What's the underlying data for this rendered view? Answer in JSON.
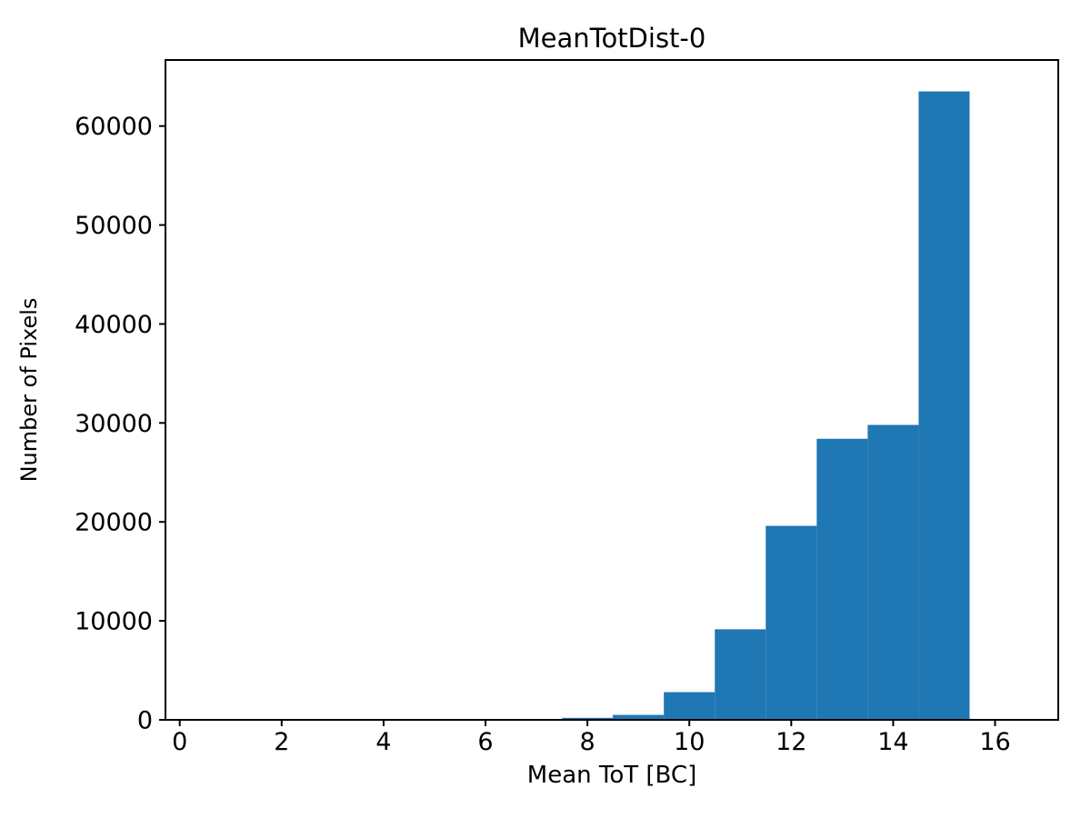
{
  "figure": {
    "background": "#ffffff"
  },
  "chart_data": {
    "type": "bar",
    "chart_kind": "histogram",
    "title": "MeanTotDist-0",
    "xlabel": "Mean ToT [BC]",
    "ylabel": "Number of Pixels",
    "bar_color": "#1f77b4",
    "axis_color": "#000000",
    "bin_edges": [
      7.5,
      8.5,
      9.5,
      10.5,
      11.5,
      12.5,
      13.5,
      14.5,
      15.5
    ],
    "counts": [
      200,
      500,
      2800,
      9150,
      19600,
      28400,
      29800,
      63500
    ],
    "xlim": [
      -0.28,
      17.24
    ],
    "ylim": [
      0,
      66675
    ],
    "xticks": [
      0,
      2,
      4,
      6,
      8,
      10,
      12,
      14,
      16
    ],
    "yticks": [
      0,
      10000,
      20000,
      30000,
      40000,
      50000,
      60000
    ],
    "grid": false,
    "legend_position": "none"
  }
}
